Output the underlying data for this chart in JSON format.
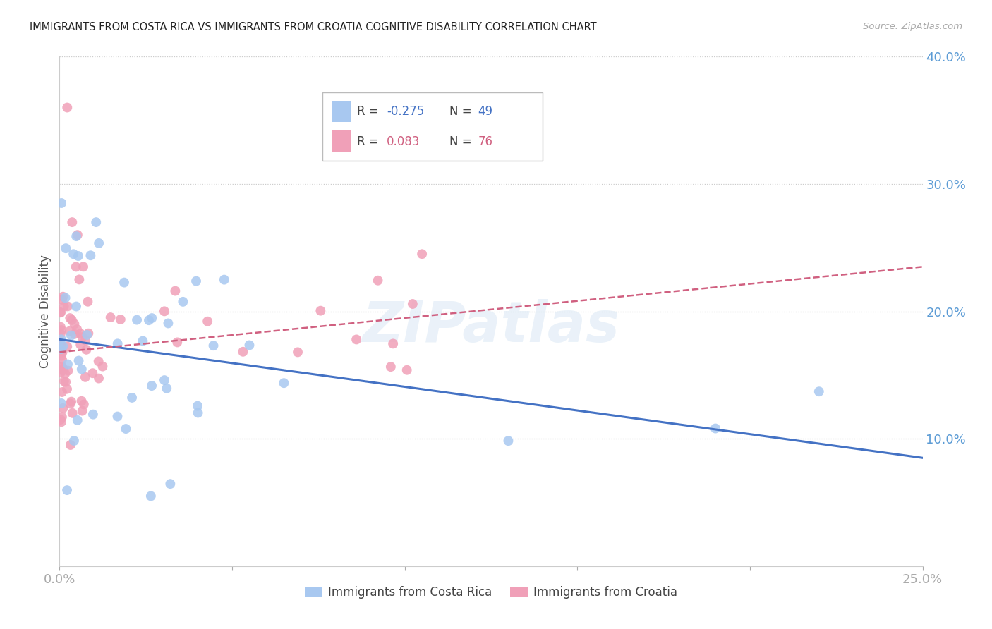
{
  "title": "IMMIGRANTS FROM COSTA RICA VS IMMIGRANTS FROM CROATIA COGNITIVE DISABILITY CORRELATION CHART",
  "source": "Source: ZipAtlas.com",
  "ylabel_label": "Cognitive Disability",
  "x_min": 0.0,
  "x_max": 0.25,
  "y_min": 0.0,
  "y_max": 0.4,
  "costa_rica_color": "#a8c8f0",
  "croatia_color": "#f0a0b8",
  "costa_rica_line_color": "#4472c4",
  "croatia_line_color": "#d06080",
  "legend_R_costa_rica": "-0.275",
  "legend_N_costa_rica": "49",
  "legend_R_croatia": "0.083",
  "legend_N_croatia": "76",
  "watermark": "ZIPatlas",
  "cr_line_y0": 0.178,
  "cr_line_y1": 0.085,
  "hr_line_y0": 0.168,
  "hr_line_y1": 0.235
}
